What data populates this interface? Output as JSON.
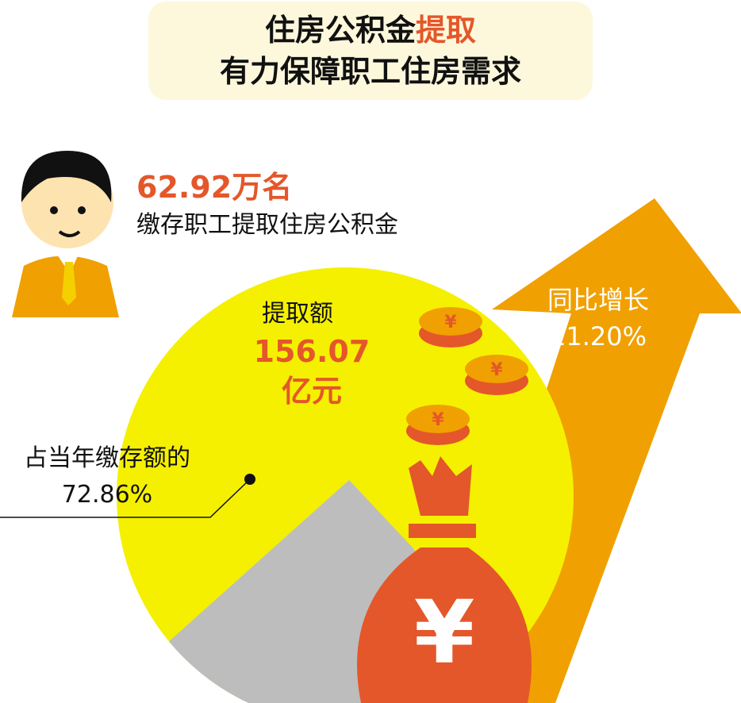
{
  "title": {
    "line1_prefix": "住房公积金",
    "line1_highlight": "提取",
    "line2": "有力保障职工住房需求"
  },
  "participants": {
    "value": "62.92万名",
    "label": "缴存职工提取住房公积金"
  },
  "withdrawal": {
    "label": "提取额",
    "value": "156.07",
    "unit": "亿元"
  },
  "growth": {
    "label": "同比增长",
    "value": "11.20%"
  },
  "share": {
    "label": "占当年缴存额的",
    "value": "72.86%"
  },
  "colors": {
    "accent": "#e4572a",
    "yellow": "#f5f000",
    "orange": "#f0a000",
    "gray": "#bdbdbd",
    "title_bg": "#fdf8dc"
  },
  "icons": [
    "person-icon",
    "coin-icon",
    "money-bag-icon",
    "up-arrow-icon"
  ]
}
